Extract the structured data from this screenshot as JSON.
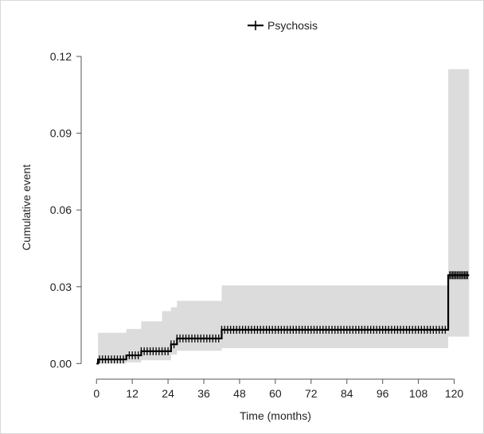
{
  "chart_data": {
    "type": "line",
    "title": "",
    "xlabel": "Time (months)",
    "ylabel": "Cumulative event",
    "xlim": [
      -3,
      126
    ],
    "ylim": [
      -0.003,
      0.12
    ],
    "x_ticks": [
      0,
      12,
      24,
      36,
      48,
      60,
      72,
      84,
      96,
      108,
      120
    ],
    "y_ticks": [
      0.0,
      0.03,
      0.06,
      0.09,
      0.12
    ],
    "y_tick_labels": [
      "0.00",
      "0.03",
      "0.06",
      "0.09",
      "0.12"
    ],
    "grid": false,
    "legend": {
      "position": "top-center",
      "entries": [
        "Psychosis"
      ]
    },
    "colors": {
      "line": "#000000",
      "ci_band": "#dcdcdc",
      "axis": "#555555"
    },
    "series": [
      {
        "name": "Psychosis",
        "step": [
          [
            0,
            0.0
          ],
          [
            0.5,
            0.0016
          ],
          [
            10,
            0.0032
          ],
          [
            15,
            0.0048
          ],
          [
            25,
            0.0075
          ],
          [
            27,
            0.0098
          ],
          [
            42,
            0.0132
          ],
          [
            118,
            0.0132
          ],
          [
            118,
            0.0345
          ],
          [
            125,
            0.0345
          ]
        ],
        "ci_upper": [
          [
            0,
            0.0
          ],
          [
            0.5,
            0.012
          ],
          [
            5,
            0.012
          ],
          [
            10,
            0.0135
          ],
          [
            15,
            0.0165
          ],
          [
            22,
            0.0205
          ],
          [
            25,
            0.022
          ],
          [
            27,
            0.0245
          ],
          [
            42,
            0.0305
          ],
          [
            118,
            0.0305
          ],
          [
            118,
            0.115
          ],
          [
            125,
            0.115
          ]
        ],
        "ci_lower": [
          [
            0,
            0.0
          ],
          [
            10,
            0.0005
          ],
          [
            15,
            0.0013
          ],
          [
            25,
            0.0035
          ],
          [
            27,
            0.005
          ],
          [
            42,
            0.006
          ],
          [
            118,
            0.006
          ],
          [
            118,
            0.0105
          ],
          [
            125,
            0.0105
          ]
        ],
        "censor_ticks": [
          1,
          2,
          3,
          4,
          5,
          6,
          7,
          8,
          9,
          11,
          12,
          13,
          14,
          15,
          16,
          17,
          18,
          19,
          20,
          21,
          22,
          23,
          24,
          25,
          26,
          27,
          28,
          29,
          30,
          31,
          32,
          33,
          34,
          35,
          36,
          37,
          38,
          39,
          40,
          41,
          42,
          43,
          44,
          45,
          46,
          47,
          48,
          49,
          50,
          51,
          52,
          53,
          54,
          55,
          56,
          57,
          58,
          59,
          60,
          61,
          62,
          63,
          64,
          65,
          66,
          67,
          68,
          69,
          70,
          71,
          72,
          73,
          74,
          75,
          76,
          77,
          78,
          79,
          80,
          81,
          82,
          83,
          84,
          85,
          86,
          87,
          88,
          89,
          90,
          91,
          92,
          93,
          94,
          95,
          96,
          97,
          98,
          99,
          100,
          101,
          102,
          103,
          104,
          105,
          106,
          107,
          108,
          109,
          110,
          111,
          112,
          113,
          114,
          115,
          116,
          117,
          118.5,
          119,
          119.5,
          120,
          120.5,
          121,
          121.5,
          122,
          122.5,
          123,
          123.5,
          124,
          124.5
        ]
      }
    ]
  }
}
